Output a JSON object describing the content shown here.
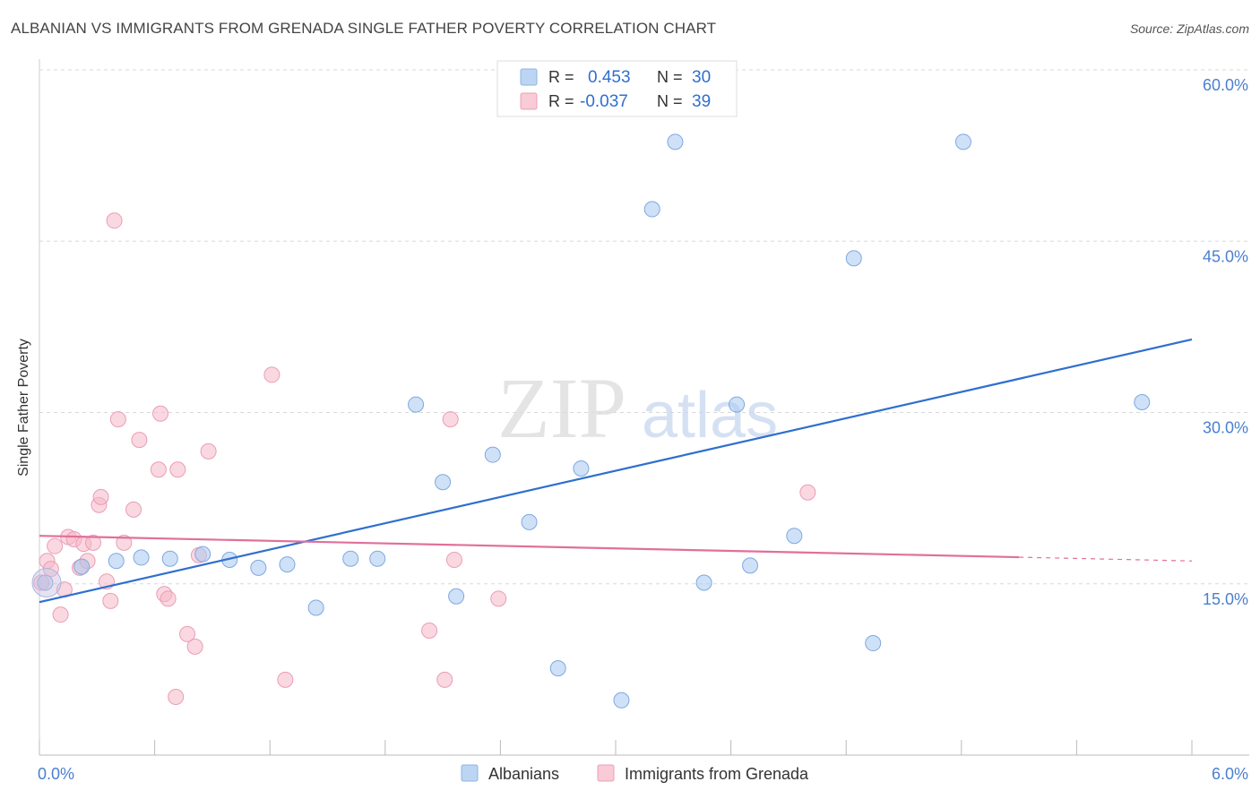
{
  "title": "ALBANIAN VS IMMIGRANTS FROM GRENADA SINGLE FATHER POVERTY CORRELATION CHART",
  "source": "Source: ZipAtlas.com",
  "watermark": {
    "zip": "ZIP",
    "atlas": "atlas"
  },
  "colors": {
    "blue_fill": "#a8c8f0",
    "blue_line": "#2f6fcf",
    "pink_fill": "#f6b8c8",
    "pink_line": "#e0709a",
    "axis_text": "#4a7fd0",
    "grid": "#d8d8d8"
  },
  "legend_box": {
    "rows": [
      {
        "r_label": "R =",
        "r_value": "0.453",
        "n_label": "N =",
        "n_value": "30",
        "series": "blue"
      },
      {
        "r_label": "R =",
        "r_value": "-0.037",
        "n_label": "N =",
        "n_value": "39",
        "series": "pink"
      }
    ]
  },
  "chart_data": {
    "type": "scatter",
    "title": "ALBANIAN VS IMMIGRANTS FROM GRENADA SINGLE FATHER POVERTY CORRELATION CHART",
    "xlabel": "",
    "ylabel": "Single Father Poverty",
    "xlim": [
      0,
      6
    ],
    "ylim": [
      0,
      60
    ],
    "x_tick_labels": [
      {
        "value": 0,
        "label": "0.0%"
      },
      {
        "value": 6,
        "label": "6.0%"
      }
    ],
    "y_tick_labels": [
      {
        "value": 15,
        "label": "15.0%"
      },
      {
        "value": 30,
        "label": "30.0%"
      },
      {
        "value": 45,
        "label": "45.0%"
      },
      {
        "value": 60,
        "label": "60.0%"
      }
    ],
    "legend": [
      "Albanians",
      "Immigrants from Grenada"
    ],
    "series": [
      {
        "name": "Albanians",
        "color": "blue",
        "trend": {
          "x0": 0,
          "y0": 13.4,
          "x1": 6,
          "y1": 36.4,
          "dash_from": null
        },
        "points": [
          [
            0.03,
            15.1
          ],
          [
            0.22,
            16.5
          ],
          [
            0.4,
            17.0
          ],
          [
            0.53,
            17.3
          ],
          [
            0.68,
            17.2
          ],
          [
            0.85,
            17.6
          ],
          [
            0.99,
            17.1
          ],
          [
            1.14,
            16.4
          ],
          [
            1.29,
            16.7
          ],
          [
            1.44,
            12.9
          ],
          [
            1.62,
            17.2
          ],
          [
            1.76,
            17.2
          ],
          [
            1.96,
            30.7
          ],
          [
            2.1,
            23.9
          ],
          [
            2.17,
            13.9
          ],
          [
            2.36,
            26.3
          ],
          [
            2.55,
            20.4
          ],
          [
            2.7,
            7.6
          ],
          [
            2.82,
            25.1
          ],
          [
            3.03,
            4.8
          ],
          [
            3.19,
            47.8
          ],
          [
            3.31,
            53.7
          ],
          [
            3.46,
            15.1
          ],
          [
            3.63,
            30.7
          ],
          [
            3.7,
            16.6
          ],
          [
            3.93,
            19.2
          ],
          [
            4.24,
            43.5
          ],
          [
            4.34,
            9.8
          ],
          [
            4.81,
            53.7
          ],
          [
            5.74,
            30.9
          ]
        ]
      },
      {
        "name": "Immigrants from Grenada",
        "color": "pink",
        "trend": {
          "x0": 0,
          "y0": 19.2,
          "x1": 6,
          "y1": 17.0,
          "dash_from": 5.1
        },
        "points": [
          [
            0.01,
            15.1
          ],
          [
            0.04,
            17.0
          ],
          [
            0.06,
            16.3
          ],
          [
            0.08,
            18.3
          ],
          [
            0.11,
            12.3
          ],
          [
            0.13,
            14.5
          ],
          [
            0.15,
            19.1
          ],
          [
            0.18,
            18.9
          ],
          [
            0.21,
            16.4
          ],
          [
            0.23,
            18.5
          ],
          [
            0.25,
            17.0
          ],
          [
            0.28,
            18.6
          ],
          [
            0.31,
            21.9
          ],
          [
            0.32,
            22.6
          ],
          [
            0.35,
            15.2
          ],
          [
            0.37,
            13.5
          ],
          [
            0.39,
            46.8
          ],
          [
            0.41,
            29.4
          ],
          [
            0.44,
            18.6
          ],
          [
            0.49,
            21.5
          ],
          [
            0.52,
            27.6
          ],
          [
            0.62,
            25.0
          ],
          [
            0.63,
            29.9
          ],
          [
            0.65,
            14.1
          ],
          [
            0.67,
            13.7
          ],
          [
            0.71,
            5.1
          ],
          [
            0.72,
            25.0
          ],
          [
            0.77,
            10.6
          ],
          [
            0.81,
            9.5
          ],
          [
            0.83,
            17.5
          ],
          [
            0.88,
            26.6
          ],
          [
            1.21,
            33.3
          ],
          [
            1.28,
            6.6
          ],
          [
            2.03,
            10.9
          ],
          [
            2.11,
            6.6
          ],
          [
            2.14,
            29.4
          ],
          [
            2.16,
            17.1
          ],
          [
            2.39,
            13.7
          ],
          [
            4.0,
            23.0
          ]
        ]
      }
    ]
  }
}
